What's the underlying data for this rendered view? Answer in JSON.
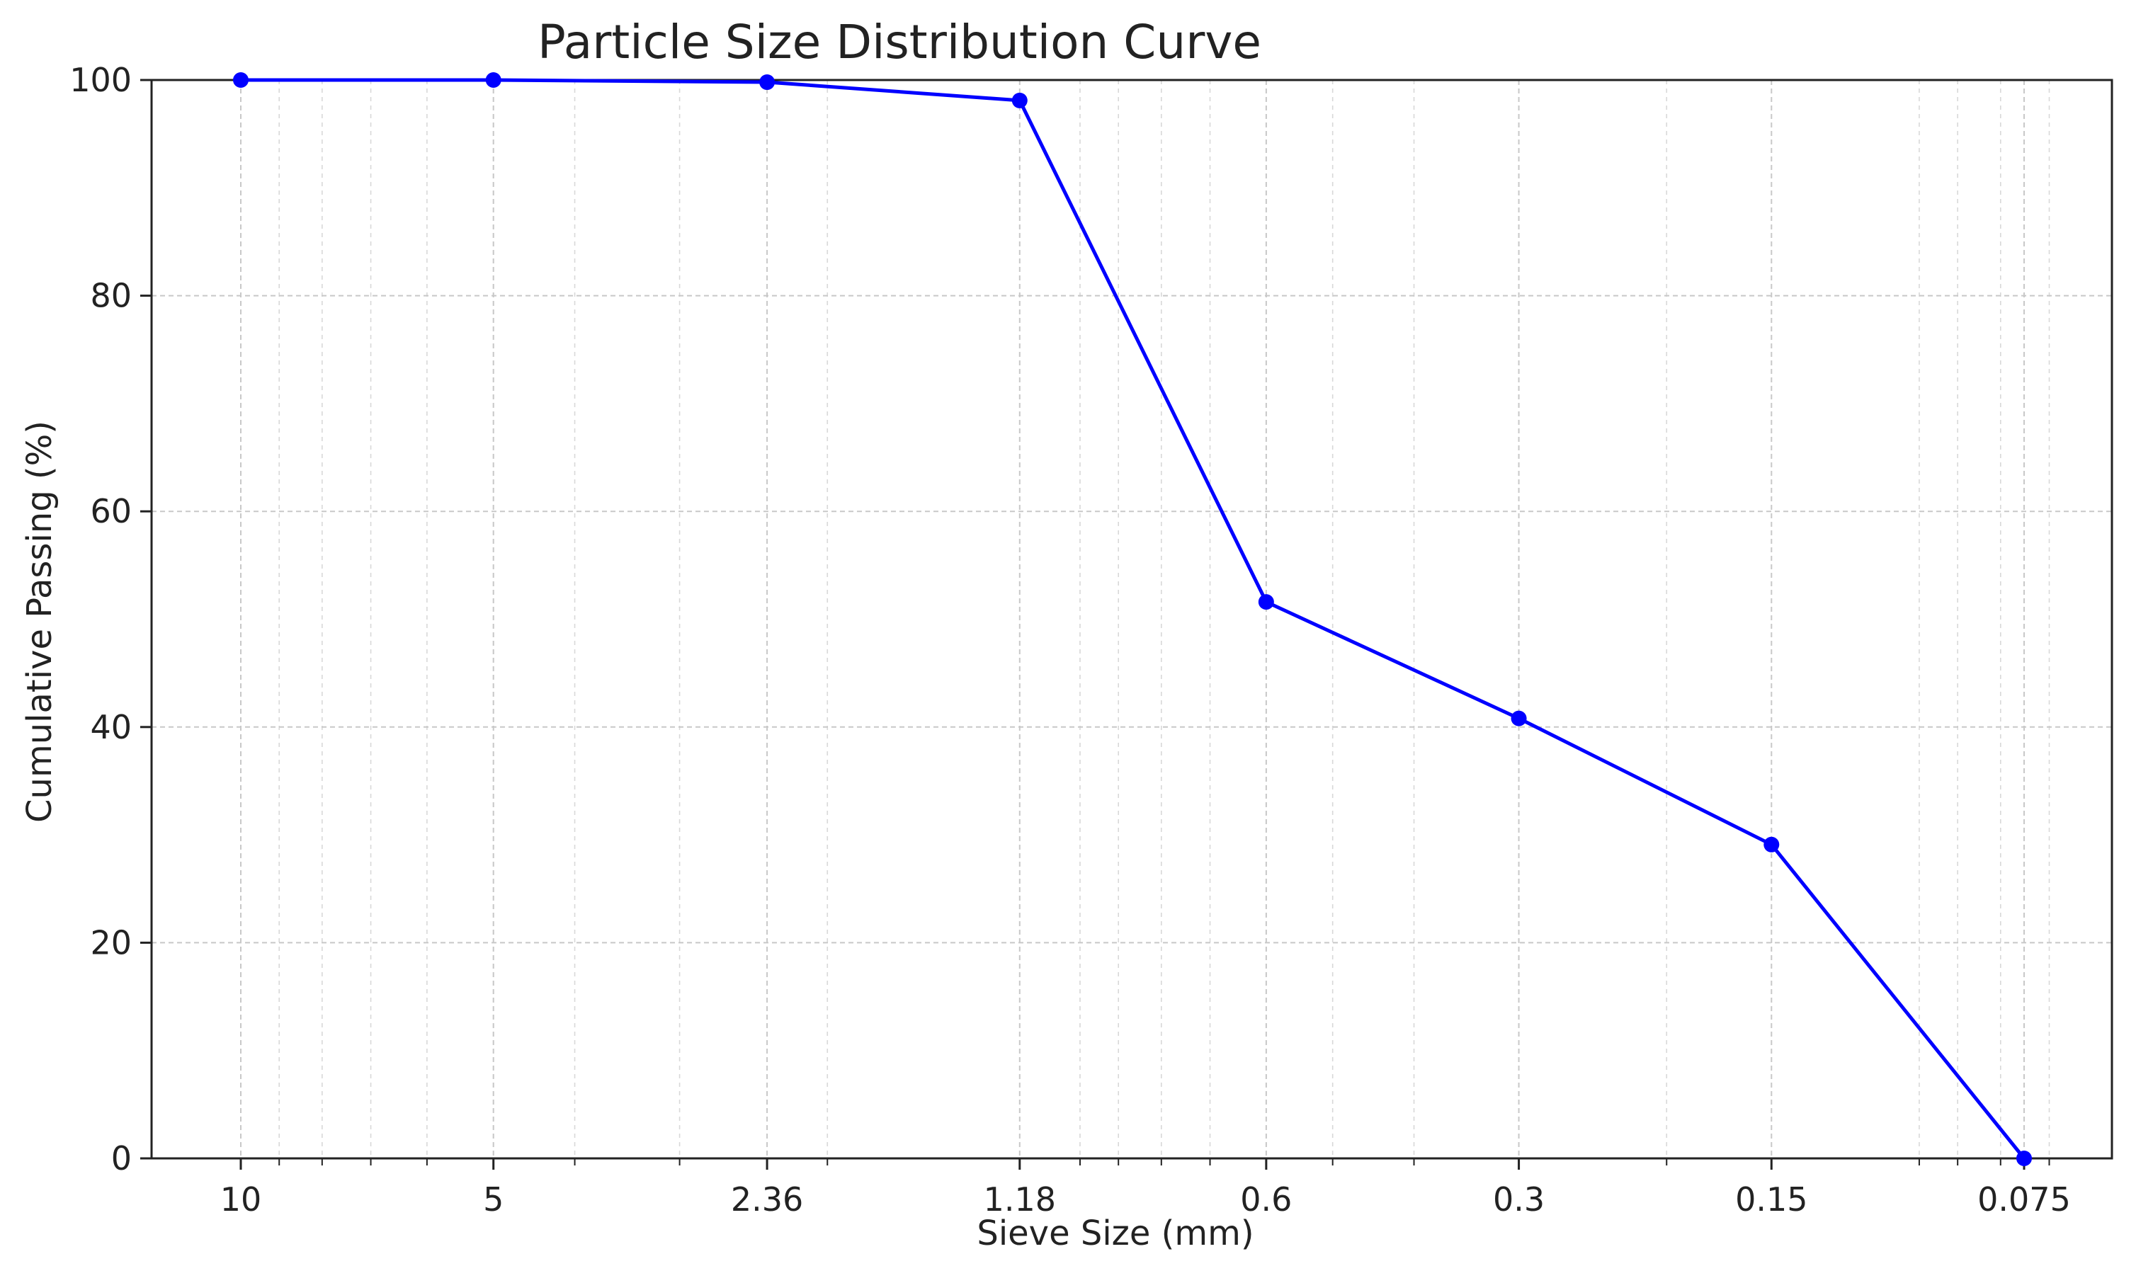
{
  "chart_data": {
    "type": "line",
    "title": "Particle Size Distribution Curve",
    "xlabel": "Sieve Size (mm)",
    "ylabel": "Cumulative Passing (%)",
    "x_scale": "log",
    "x_reversed": true,
    "x_tick_labels": [
      "10",
      "5",
      "2.36",
      "1.18",
      "0.6",
      "0.3",
      "0.15",
      "0.075"
    ],
    "y_ticks": [
      0,
      20,
      40,
      60,
      80,
      100
    ],
    "ylim": [
      0,
      100
    ],
    "grid": true,
    "legend": "none",
    "series": [
      {
        "color": "#0000ff",
        "marker": "circle",
        "x": [
          10,
          5,
          2.36,
          1.18,
          0.6,
          0.3,
          0.15,
          0.075
        ],
        "y": [
          100,
          100,
          99.8,
          98.1,
          51.6,
          40.8,
          29.1,
          0
        ]
      }
    ]
  }
}
